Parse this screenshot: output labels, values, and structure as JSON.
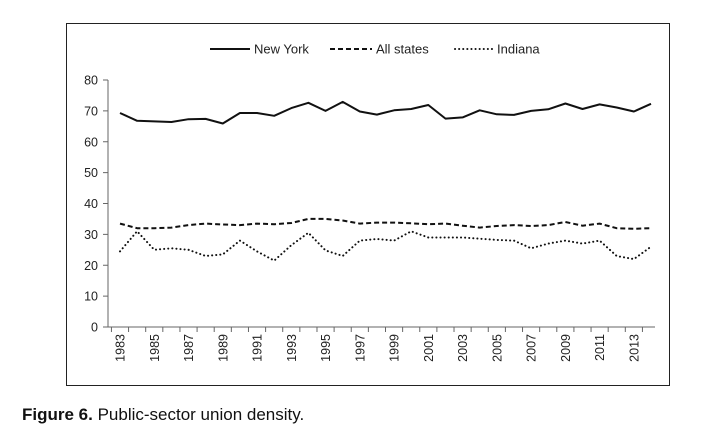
{
  "chart_data": {
    "type": "line",
    "title": "",
    "xlabel": "",
    "ylabel": "",
    "ylim": [
      0,
      80
    ],
    "yticks": [
      0,
      10,
      20,
      30,
      40,
      50,
      60,
      70,
      80
    ],
    "x": [
      1983,
      1984,
      1985,
      1986,
      1987,
      1988,
      1989,
      1990,
      1991,
      1992,
      1993,
      1994,
      1995,
      1996,
      1997,
      1998,
      1999,
      2000,
      2001,
      2002,
      2003,
      2004,
      2005,
      2006,
      2007,
      2008,
      2009,
      2010,
      2011,
      2012,
      2013,
      2014
    ],
    "xtick_labels": [
      "1983",
      "1985",
      "1987",
      "1989",
      "1991",
      "1993",
      "1995",
      "1997",
      "1999",
      "2001",
      "2003",
      "2005",
      "2007",
      "2009",
      "2011",
      "2013"
    ],
    "legend_position": "top-center",
    "series": [
      {
        "name": "New York",
        "style": "solid",
        "values": [
          69.3,
          66.8,
          66.6,
          66.4,
          67.3,
          67.4,
          65.9,
          69.3,
          69.3,
          68.4,
          70.9,
          72.6,
          70.0,
          72.9,
          69.8,
          68.8,
          70.2,
          70.6,
          71.9,
          67.5,
          67.9,
          70.2,
          68.9,
          68.7,
          70.0,
          70.5,
          72.4,
          70.6,
          72.1,
          71.1,
          69.8,
          72.3
        ]
      },
      {
        "name": "All states",
        "style": "dashed",
        "values": [
          33.5,
          32.0,
          32.0,
          32.2,
          33.0,
          33.5,
          33.2,
          33.0,
          33.5,
          33.3,
          33.7,
          35.0,
          35.0,
          34.5,
          33.5,
          33.8,
          33.8,
          33.6,
          33.3,
          33.5,
          32.8,
          32.2,
          32.7,
          33.0,
          32.7,
          33.0,
          34.0,
          32.8,
          33.5,
          32.0,
          31.8,
          32.0
        ]
      },
      {
        "name": "Indiana",
        "style": "dotted",
        "values": [
          24.5,
          31.0,
          25.0,
          25.5,
          25.0,
          23.0,
          23.5,
          28.0,
          24.5,
          21.5,
          26.5,
          30.5,
          24.8,
          23.0,
          28.0,
          28.5,
          28.0,
          31.0,
          29.0,
          29.0,
          29.0,
          28.6,
          28.2,
          28.0,
          25.5,
          27.0,
          28.0,
          27.0,
          28.0,
          23.0,
          22.0,
          26.0
        ]
      }
    ]
  },
  "caption": {
    "label": "Figure 6.",
    "text": " Public-sector union density."
  }
}
